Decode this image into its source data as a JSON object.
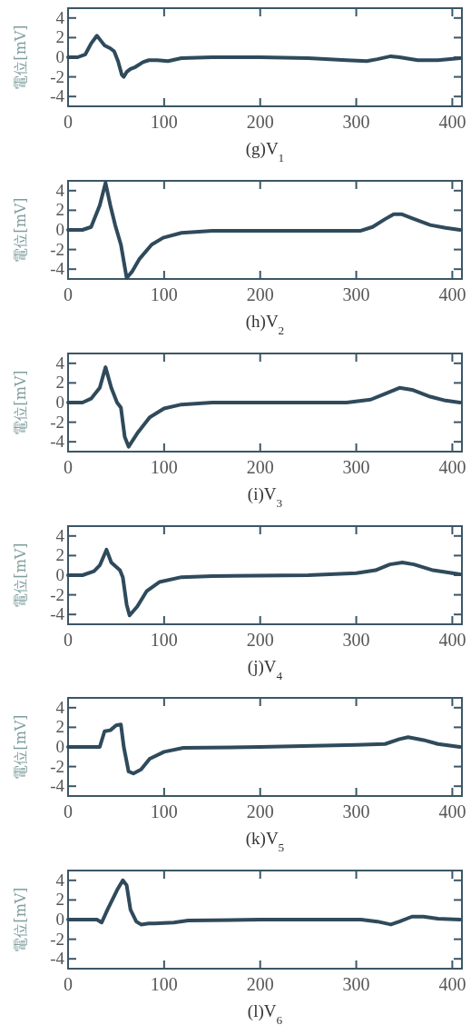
{
  "chart_data": [
    {
      "type": "line",
      "title": "(g)V$_{1}$",
      "ylabel": "電位[mV]",
      "color": "#2f4a5b",
      "xlim": [
        0,
        410
      ],
      "ylim": [
        -5,
        5
      ],
      "xticks": [
        0,
        100,
        200,
        300,
        400
      ],
      "yticks": [
        -4,
        -2,
        0,
        2,
        4
      ],
      "x": [
        0,
        10,
        18,
        24,
        30,
        34,
        38,
        44,
        48,
        52,
        56,
        58,
        61,
        65,
        70,
        78,
        84,
        93,
        104,
        118,
        150,
        200,
        250,
        290,
        311,
        322,
        336,
        345,
        364,
        385,
        408
      ],
      "values": [
        0,
        0,
        0.3,
        1.4,
        2.2,
        1.7,
        1.2,
        0.9,
        0.6,
        -0.4,
        -1.8,
        -2.0,
        -1.5,
        -1.2,
        -1.0,
        -0.5,
        -0.3,
        -0.3,
        -0.4,
        -0.1,
        0,
        0,
        -0.1,
        -0.3,
        -0.4,
        -0.2,
        0.1,
        0,
        -0.3,
        -0.3,
        -0.1
      ]
    },
    {
      "type": "line",
      "title": "(h)V$_{2}$",
      "ylabel": "電位[mV]",
      "color": "#2f4a5b",
      "xlim": [
        0,
        410
      ],
      "ylim": [
        -5,
        5
      ],
      "xticks": [
        0,
        100,
        200,
        300,
        400
      ],
      "yticks": [
        -4,
        -2,
        0,
        2,
        4
      ],
      "x": [
        0,
        15,
        24,
        33,
        39,
        44,
        49,
        55,
        61,
        67,
        74,
        87,
        99,
        118,
        150,
        276,
        304,
        317,
        330,
        339,
        347,
        358,
        377,
        393,
        408
      ],
      "values": [
        0,
        0,
        0.3,
        2.5,
        4.8,
        2.5,
        0.5,
        -1.5,
        -4.9,
        -4.2,
        -3.0,
        -1.5,
        -0.8,
        -0.3,
        -0.1,
        -0.1,
        -0.1,
        0.3,
        1.1,
        1.6,
        1.6,
        1.2,
        0.5,
        0.2,
        0
      ]
    },
    {
      "type": "line",
      "title": "(i)V$_{3}$",
      "ylabel": "電位[mV]",
      "color": "#2f4a5b",
      "xlim": [
        0,
        410
      ],
      "ylim": [
        -5,
        5
      ],
      "xticks": [
        0,
        100,
        200,
        300,
        400
      ],
      "yticks": [
        -4,
        -2,
        0,
        2,
        4
      ],
      "x": [
        0,
        15,
        24,
        33,
        39,
        45,
        51,
        55,
        59,
        63,
        73,
        85,
        100,
        118,
        150,
        290,
        315,
        330,
        345,
        358,
        377,
        393,
        408
      ],
      "values": [
        0,
        0,
        0.4,
        1.5,
        3.6,
        1.5,
        0,
        -0.5,
        -3.5,
        -4.5,
        -3.0,
        -1.5,
        -0.6,
        -0.2,
        0,
        0,
        0.3,
        0.9,
        1.5,
        1.3,
        0.6,
        0.2,
        0
      ]
    },
    {
      "type": "line",
      "title": "(j)V$_{4}$",
      "ylabel": "電位[mV]",
      "color": "#2f4a5b",
      "xlim": [
        0,
        410
      ],
      "ylim": [
        -5,
        5
      ],
      "xticks": [
        0,
        100,
        200,
        300,
        400
      ],
      "yticks": [
        -4,
        -2,
        0,
        2,
        4
      ],
      "x": [
        0,
        15,
        27,
        33,
        40,
        45,
        54,
        57,
        61,
        64,
        72,
        82,
        95,
        118,
        150,
        250,
        300,
        320,
        335,
        348,
        360,
        380,
        408
      ],
      "values": [
        0,
        0,
        0.4,
        1.0,
        2.6,
        1.3,
        0.5,
        -0.2,
        -3.0,
        -4.1,
        -3.2,
        -1.6,
        -0.7,
        -0.2,
        -0.1,
        0,
        0.2,
        0.5,
        1.1,
        1.3,
        1.1,
        0.5,
        0.1
      ]
    },
    {
      "type": "line",
      "title": "(k)V$_{5}$",
      "ylabel": "電位[mV]",
      "color": "#2f4a5b",
      "xlim": [
        0,
        410
      ],
      "ylim": [
        -5,
        5
      ],
      "xticks": [
        0,
        100,
        200,
        300,
        400
      ],
      "yticks": [
        -4,
        -2,
        0,
        2,
        4
      ],
      "x": [
        0,
        33,
        38,
        44,
        50,
        55,
        58,
        63,
        68,
        76,
        85,
        100,
        120,
        200,
        300,
        330,
        345,
        354,
        370,
        385,
        408
      ],
      "values": [
        0,
        0,
        1.6,
        1.7,
        2.2,
        2.3,
        0,
        -2.5,
        -2.7,
        -2.3,
        -1.2,
        -0.5,
        -0.1,
        0,
        0.2,
        0.3,
        0.8,
        1.0,
        0.7,
        0.3,
        0
      ]
    },
    {
      "type": "line",
      "title": "(l)V$_{6}$",
      "ylabel": "電位[mV]",
      "color": "#2f4a5b",
      "xlim": [
        0,
        410
      ],
      "ylim": [
        -5,
        5
      ],
      "xticks": [
        0,
        100,
        200,
        300,
        400
      ],
      "yticks": [
        -4,
        -2,
        0,
        2,
        4
      ],
      "x": [
        0,
        30,
        35,
        41,
        51,
        57,
        61,
        65,
        71,
        76,
        84,
        90,
        110,
        125,
        200,
        305,
        322,
        336,
        345,
        358,
        370,
        385,
        408
      ],
      "values": [
        0,
        0,
        -0.3,
        1.0,
        3.0,
        4.0,
        3.5,
        1.0,
        -0.2,
        -0.5,
        -0.4,
        -0.4,
        -0.3,
        -0.1,
        0,
        0,
        -0.2,
        -0.5,
        -0.2,
        0.3,
        0.3,
        0.1,
        0
      ]
    }
  ]
}
